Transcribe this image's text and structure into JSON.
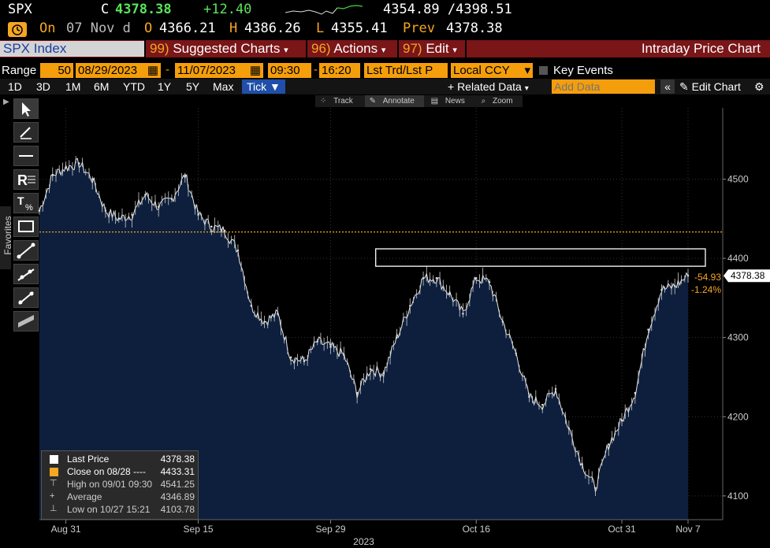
{
  "header": {
    "ticker": "SPX",
    "c_label": "C",
    "last": "4378.38",
    "change": "+12.40",
    "range": "4354.89 /4398.51",
    "on_label": "On",
    "on_date": "07 Nov d",
    "o_label": "O",
    "open": "4366.21",
    "h_label": "H",
    "high": "4386.26",
    "l_label": "L",
    "low": "4355.41",
    "prev_label": "Prev",
    "prev": "4378.38"
  },
  "toolbar": {
    "security": "SPX Index",
    "suggested_num": "99)",
    "suggested": "Suggested Charts",
    "actions_num": "96)",
    "actions": "Actions",
    "edit_num": "97)",
    "edit": "Edit",
    "title": "Intraday Price Chart"
  },
  "rangebar": {
    "range_label": "Range",
    "bars": "50",
    "start_date": "08/29/2023",
    "end_date": "11/07/2023",
    "start_time": "09:30",
    "end_time": "16:20",
    "market": "Lst Trd/Lst P",
    "currency": "Local CCY",
    "key_events": "Key Events"
  },
  "periods": {
    "items": [
      "1D",
      "3D",
      "1M",
      "6M",
      "YTD",
      "1Y",
      "5Y",
      "Max"
    ],
    "tick": "Tick",
    "related": "+ Related Data",
    "add_placeholder": "Add Data",
    "edit_chart": "Edit Chart"
  },
  "minitools": {
    "track": "Track",
    "annotate": "Annotate",
    "news": "News",
    "zoom": "Zoom"
  },
  "favorites": "Favorites",
  "legend": {
    "items": [
      {
        "label": "Last Price",
        "value": "4378.38"
      },
      {
        "label": "Close on 08/28 ----",
        "value": "4433.31"
      },
      {
        "label": "High on 09/01 09:30",
        "value": "4541.25"
      },
      {
        "label": "Average",
        "value": "4346.89"
      },
      {
        "label": "Low on 10/27 15:21",
        "value": "4103.78"
      }
    ]
  },
  "annotations": {
    "last_tag": "4378.38",
    "abs_change": "-54.93",
    "pct_change": "-1.24%"
  },
  "colors": {
    "area": "#0d1f3c",
    "area_top": "#1e3a66",
    "price_line": "#ffffff",
    "ref_line": "#f5a623",
    "accent": "#f59e0b",
    "up": "#5be35b",
    "bar": "#7a1518"
  },
  "chart_data": {
    "type": "area",
    "x_dates": [
      "2023-08-29",
      "2023-08-30",
      "2023-08-31",
      "2023-09-01",
      "2023-09-05",
      "2023-09-06",
      "2023-09-07",
      "2023-09-08",
      "2023-09-11",
      "2023-09-12",
      "2023-09-13",
      "2023-09-14",
      "2023-09-15",
      "2023-09-18",
      "2023-09-19",
      "2023-09-20",
      "2023-09-21",
      "2023-09-22",
      "2023-09-25",
      "2023-09-26",
      "2023-09-27",
      "2023-09-28",
      "2023-09-29",
      "2023-10-02",
      "2023-10-03",
      "2023-10-04",
      "2023-10-05",
      "2023-10-06",
      "2023-10-09",
      "2023-10-10",
      "2023-10-11",
      "2023-10-12",
      "2023-10-13",
      "2023-10-16",
      "2023-10-17",
      "2023-10-18",
      "2023-10-19",
      "2023-10-20",
      "2023-10-23",
      "2023-10-24",
      "2023-10-25",
      "2023-10-26",
      "2023-10-27",
      "2023-10-30",
      "2023-10-31",
      "2023-11-01",
      "2023-11-02",
      "2023-11-03",
      "2023-11-06",
      "2023-11-07"
    ],
    "values": [
      4460,
      4505,
      4515,
      4520,
      4500,
      4460,
      4450,
      4455,
      4480,
      4465,
      4475,
      4505,
      4455,
      4440,
      4435,
      4410,
      4340,
      4320,
      4330,
      4275,
      4270,
      4295,
      4288,
      4278,
      4230,
      4260,
      4255,
      4300,
      4340,
      4375,
      4375,
      4355,
      4330,
      4375,
      4370,
      4320,
      4280,
      4225,
      4215,
      4235,
      4185,
      4140,
      4110,
      4165,
      4195,
      4230,
      4310,
      4360,
      4365,
      4378
    ],
    "xlabel": "2023",
    "x_tick_labels": [
      "Aug 31",
      "Sep 15",
      "Sep 29",
      "Oct 16",
      "Oct 31",
      "Nov 7"
    ],
    "x_tick_dates": [
      "2023-08-31",
      "2023-09-15",
      "2023-09-29",
      "2023-10-16",
      "2023-10-31",
      "2023-11-07"
    ],
    "y_ticks": [
      4100,
      4200,
      4300,
      4400,
      4500
    ],
    "ylim": [
      4070,
      4590
    ],
    "reference_line": 4433.31,
    "highlight_range": [
      4390,
      4412
    ],
    "grid": true,
    "legend_position": "bottom-left"
  }
}
